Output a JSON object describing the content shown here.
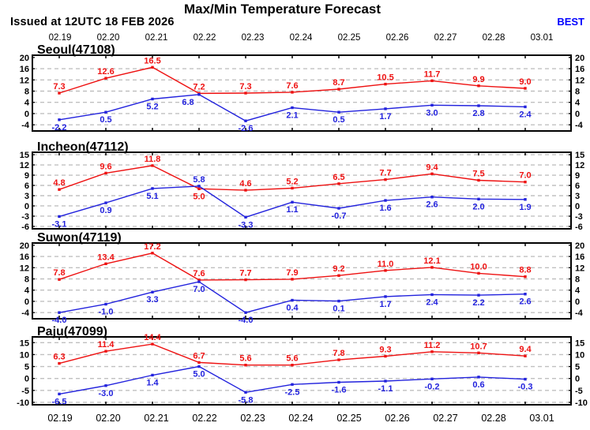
{
  "header": {
    "title": "Max/Min Temperature Forecast",
    "issued": "Issued at 12UTC 18 FEB 2026",
    "best_label": "BEST"
  },
  "colors": {
    "max_line": "#ee1111",
    "min_line": "#2222dd",
    "grid": "#c0c0c0",
    "axis": "#000000",
    "text": "#000000",
    "best": "#0000ff"
  },
  "chart_data": {
    "type": "line",
    "title": "Max/Min Temperature Forecast",
    "x_categories": [
      "02.19",
      "02.20",
      "02.21",
      "02.22",
      "02.23",
      "02.24",
      "02.25",
      "02.26",
      "02.27",
      "02.28",
      "03.01"
    ],
    "legend": "none",
    "grid": "dashed horizontal",
    "panels": [
      {
        "station": "Seoul(47108)",
        "yticks": [
          20,
          16,
          12,
          8,
          4,
          0,
          -4
        ],
        "ylim": [
          -6.2,
          20.8
        ],
        "series": [
          {
            "name": "max",
            "values": [
              7.3,
              12.6,
              16.5,
              7.2,
              7.3,
              7.6,
              8.7,
              10.5,
              11.7,
              9.9,
              9.0
            ]
          },
          {
            "name": "min",
            "values": [
              -2.2,
              0.5,
              5.2,
              6.8,
              -2.6,
              2.1,
              0.5,
              1.7,
              3.0,
              2.8,
              2.4
            ]
          }
        ]
      },
      {
        "station": "Incheon(47112)",
        "yticks": [
          15,
          12,
          9,
          6,
          3,
          0,
          -3,
          -6
        ],
        "ylim": [
          -6.7,
          15.7
        ],
        "series": [
          {
            "name": "max",
            "values": [
              4.8,
              9.6,
              11.8,
              5.0,
              4.6,
              5.2,
              6.5,
              7.7,
              9.4,
              7.5,
              7.0
            ]
          },
          {
            "name": "min",
            "values": [
              -3.1,
              0.9,
              5.1,
              5.8,
              -3.3,
              1.1,
              -0.7,
              1.6,
              2.6,
              2.0,
              1.9
            ]
          }
        ]
      },
      {
        "station": "Suwon(47119)",
        "yticks": [
          20,
          16,
          12,
          8,
          4,
          0,
          -4
        ],
        "ylim": [
          -6.2,
          20.8
        ],
        "series": [
          {
            "name": "max",
            "values": [
              7.8,
              13.4,
              17.2,
              7.6,
              7.7,
              7.9,
              9.2,
              11.0,
              12.1,
              10.0,
              8.8
            ]
          },
          {
            "name": "min",
            "values": [
              -4.0,
              -1.0,
              3.3,
              7.0,
              -4.0,
              0.4,
              0.1,
              1.7,
              2.4,
              2.2,
              2.6
            ]
          }
        ]
      },
      {
        "station": "Paju(47099)",
        "yticks": [
          15,
          10,
          5,
          0,
          -5,
          -10
        ],
        "ylim": [
          -11.0,
          17.4
        ],
        "series": [
          {
            "name": "max",
            "values": [
              6.3,
              11.4,
              14.4,
              6.7,
              5.6,
              5.6,
              7.8,
              9.3,
              11.2,
              10.7,
              9.4
            ]
          },
          {
            "name": "min",
            "values": [
              -6.5,
              -3.0,
              1.4,
              5.0,
              -5.8,
              -2.5,
              -1.6,
              -1.1,
              -0.2,
              0.6,
              -0.3
            ]
          }
        ]
      }
    ]
  }
}
